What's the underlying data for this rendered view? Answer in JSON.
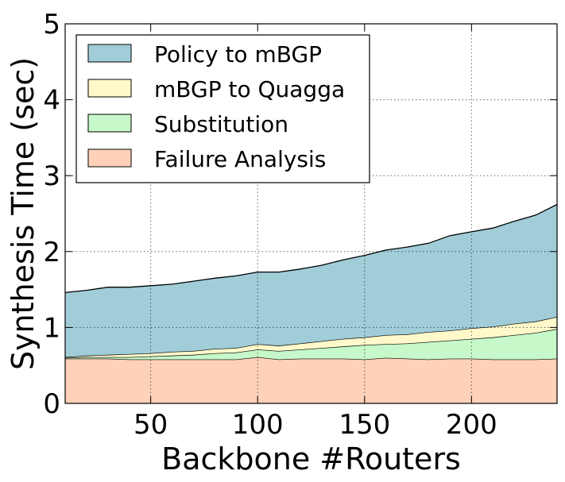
{
  "chart_data": {
    "type": "area",
    "stacked": true,
    "title": "",
    "xlabel": "Backbone #Routers",
    "ylabel": "Synthesis Time (sec)",
    "xlim": [
      10,
      240
    ],
    "ylim": [
      0,
      5
    ],
    "xticks": [
      50,
      100,
      150,
      200
    ],
    "yticks": [
      0,
      1,
      2,
      3,
      4,
      5
    ],
    "grid": true,
    "legend_position": "top-left",
    "x": [
      10,
      20,
      30,
      40,
      50,
      60,
      70,
      80,
      90,
      100,
      110,
      120,
      130,
      140,
      150,
      160,
      170,
      180,
      190,
      200,
      210,
      220,
      230,
      240
    ],
    "series": [
      {
        "name": "Failure Analysis",
        "color": "#fed1b9",
        "values": [
          0.59,
          0.59,
          0.59,
          0.58,
          0.58,
          0.58,
          0.58,
          0.58,
          0.58,
          0.61,
          0.58,
          0.59,
          0.59,
          0.59,
          0.58,
          0.6,
          0.59,
          0.58,
          0.59,
          0.59,
          0.58,
          0.58,
          0.58,
          0.59
        ]
      },
      {
        "name": "Substitution",
        "color": "#c6f8c9",
        "values": [
          0.01,
          0.02,
          0.02,
          0.03,
          0.04,
          0.05,
          0.06,
          0.08,
          0.09,
          0.1,
          0.11,
          0.12,
          0.14,
          0.16,
          0.19,
          0.18,
          0.2,
          0.23,
          0.24,
          0.26,
          0.29,
          0.32,
          0.35,
          0.39
        ]
      },
      {
        "name": "mBGP to Quagga",
        "color": "#fef8ca",
        "values": [
          0.01,
          0.02,
          0.03,
          0.04,
          0.04,
          0.05,
          0.05,
          0.06,
          0.06,
          0.07,
          0.07,
          0.08,
          0.09,
          0.1,
          0.1,
          0.12,
          0.12,
          0.13,
          0.13,
          0.14,
          0.14,
          0.15,
          0.15,
          0.16
        ]
      },
      {
        "name": "Policy to mBGP",
        "color": "#a0cdd8",
        "values": [
          0.85,
          0.86,
          0.89,
          0.88,
          0.89,
          0.89,
          0.92,
          0.93,
          0.95,
          0.95,
          0.97,
          0.98,
          1.0,
          1.04,
          1.08,
          1.12,
          1.15,
          1.17,
          1.25,
          1.27,
          1.3,
          1.35,
          1.4,
          1.48
        ]
      }
    ],
    "legend_order": [
      "Policy to mBGP",
      "mBGP to Quagga",
      "Substitution",
      "Failure Analysis"
    ]
  }
}
